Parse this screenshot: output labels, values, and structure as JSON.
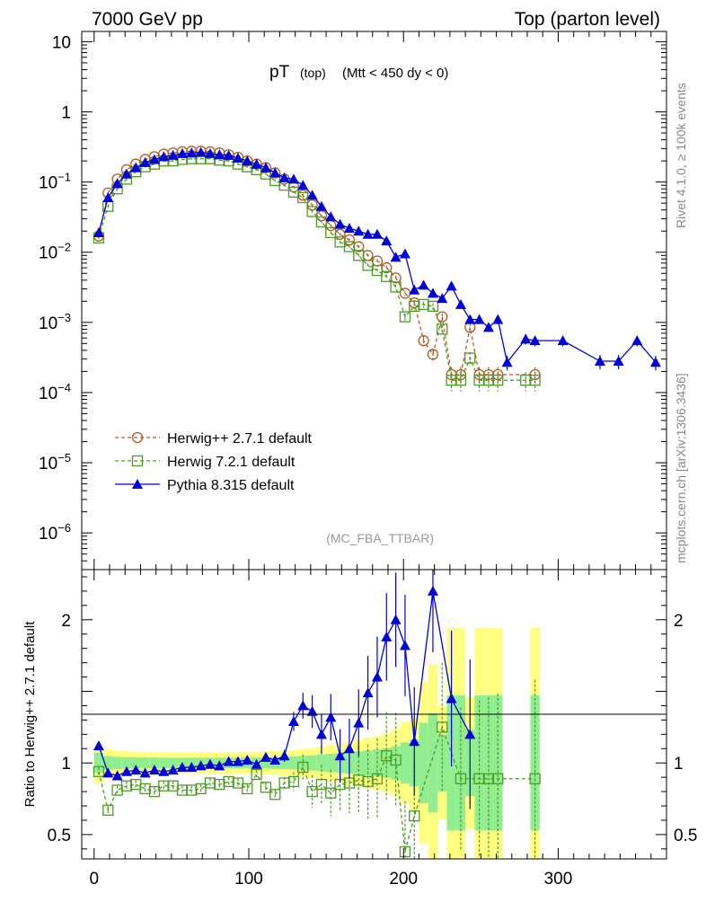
{
  "header": {
    "left": "7000 GeV pp",
    "right": "Top (parton level)"
  },
  "title": {
    "main": "pT",
    "sub1": "(top)",
    "sub2": "(Mtt < 450 dy < 0)"
  },
  "analysis_label": "(MC_FBA_TTBAR)",
  "side_text": {
    "rivet": "Rivet 4.1.0, ≥ 100k events",
    "mcplots": "mcplots.cern.ch [arXiv:1306.3436]"
  },
  "ratio_ylabel": "Ratio to Herwig++ 2.7.1 default",
  "colors": {
    "herwig_pp": "#b35a1f",
    "herwig7": "#4d9a26",
    "pythia": "#0000dd",
    "band_yellow": "#ffff80",
    "band_green": "#90ee90"
  },
  "chart_data": [
    {
      "type": "line",
      "yscale": "log",
      "xlim": [
        -8,
        370
      ],
      "ylim": [
        3e-07,
        14
      ],
      "y_tick_labels": [
        "10",
        "1",
        "10^-1",
        "10^-2",
        "10^-3",
        "10^-4",
        "10^-5",
        "10^-6"
      ],
      "legend": [
        "Herwig++ 2.7.1 default",
        "Herwig 7.2.1 default",
        "Pythia 8.315 default"
      ],
      "legend_position": "bottom-left",
      "series": [
        {
          "name": "Herwig++ 2.7.1 default",
          "marker": "open-circle",
          "style": "dashed",
          "x": [
            3,
            9,
            15,
            21,
            27,
            33,
            39,
            45,
            51,
            57,
            63,
            69,
            75,
            81,
            87,
            93,
            99,
            105,
            111,
            117,
            123,
            129,
            135,
            141,
            147,
            153,
            159,
            165,
            171,
            177,
            183,
            189,
            195,
            201,
            207,
            213,
            219,
            225,
            231,
            237,
            243,
            249,
            255,
            261,
            285
          ],
          "y": [
            0.017,
            0.07,
            0.11,
            0.15,
            0.18,
            0.21,
            0.23,
            0.25,
            0.26,
            0.27,
            0.275,
            0.275,
            0.27,
            0.26,
            0.245,
            0.225,
            0.2,
            0.18,
            0.16,
            0.135,
            0.11,
            0.085,
            0.065,
            0.047,
            0.033,
            0.024,
            0.018,
            0.015,
            0.012,
            0.009,
            0.0075,
            0.006,
            0.0043,
            0.0026,
            0.0019,
            0.00055,
            0.00035,
            0.0012,
            0.00018,
            0.00018,
            0.00085,
            0.00018,
            0.00018,
            0.00018,
            0.00018
          ]
        },
        {
          "name": "Herwig 7.2.1 default",
          "marker": "open-square",
          "style": "dashed",
          "x": [
            3,
            9,
            15,
            21,
            27,
            33,
            39,
            45,
            51,
            57,
            63,
            69,
            75,
            81,
            87,
            93,
            99,
            105,
            111,
            117,
            123,
            129,
            135,
            141,
            147,
            153,
            159,
            165,
            171,
            177,
            183,
            189,
            195,
            201,
            207,
            213,
            219,
            225,
            231,
            237,
            243,
            249,
            255,
            261,
            279,
            285
          ],
          "y": [
            0.016,
            0.045,
            0.08,
            0.11,
            0.14,
            0.165,
            0.18,
            0.2,
            0.2,
            0.21,
            0.215,
            0.215,
            0.215,
            0.205,
            0.2,
            0.18,
            0.165,
            0.15,
            0.13,
            0.105,
            0.09,
            0.072,
            0.06,
            0.038,
            0.027,
            0.019,
            0.014,
            0.012,
            0.009,
            0.0065,
            0.0055,
            0.0045,
            0.0032,
            0.0012,
            0.0017,
            0.0018,
            0.0017,
            0.0008,
            0.00015,
            0.00015,
            0.00031,
            0.00015,
            0.00015,
            0.00015,
            0.00015,
            0.00015
          ]
        },
        {
          "name": "Pythia 8.315 default",
          "marker": "filled-triangle",
          "style": "solid",
          "x": [
            3,
            9,
            15,
            21,
            27,
            33,
            39,
            45,
            51,
            57,
            63,
            69,
            75,
            81,
            87,
            93,
            99,
            105,
            111,
            117,
            123,
            129,
            135,
            141,
            147,
            153,
            159,
            165,
            171,
            177,
            183,
            189,
            195,
            201,
            207,
            213,
            219,
            225,
            231,
            237,
            243,
            249,
            255,
            261,
            267,
            279,
            285,
            303,
            327,
            339,
            351,
            363
          ],
          "y": [
            0.019,
            0.06,
            0.095,
            0.13,
            0.16,
            0.19,
            0.21,
            0.23,
            0.24,
            0.255,
            0.26,
            0.265,
            0.255,
            0.245,
            0.24,
            0.22,
            0.2,
            0.18,
            0.16,
            0.135,
            0.115,
            0.11,
            0.09,
            0.065,
            0.045,
            0.032,
            0.025,
            0.022,
            0.02,
            0.018,
            0.018,
            0.0145,
            0.0085,
            0.0095,
            0.0029,
            0.0034,
            0.0026,
            0.0022,
            0.0033,
            0.0018,
            0.0011,
            0.0011,
            0.00085,
            0.0011,
            0.00027,
            0.00058,
            0.00055,
            0.00055,
            0.00028,
            0.00028,
            0.00055,
            0.00027
          ]
        }
      ]
    },
    {
      "type": "line",
      "title": "ratio",
      "ylim": [
        0.33,
        2.35
      ],
      "xlim": [
        -8,
        370
      ],
      "x_tick_labels": [
        "0",
        "100",
        "200",
        "300"
      ],
      "y_tick_labels": [
        "0.5",
        "1",
        "2"
      ],
      "reference": 1,
      "series": [
        {
          "name": "Herwig 7.2.1 default",
          "x": [
            3,
            9,
            15,
            21,
            27,
            33,
            39,
            45,
            51,
            57,
            63,
            69,
            75,
            81,
            87,
            93,
            99,
            105,
            111,
            117,
            123,
            129,
            135,
            141,
            147,
            153,
            159,
            165,
            171,
            177,
            183,
            189,
            195,
            201,
            207,
            225,
            237,
            249,
            255,
            261,
            285
          ],
          "y": [
            0.94,
            0.67,
            0.81,
            0.84,
            0.85,
            0.82,
            0.8,
            0.84,
            0.84,
            0.81,
            0.81,
            0.82,
            0.86,
            0.85,
            0.87,
            0.86,
            0.82,
            0.92,
            0.83,
            0.78,
            0.86,
            0.87,
            0.97,
            0.8,
            0.85,
            0.79,
            0.85,
            0.86,
            0.88,
            0.87,
            0.89,
            1.05,
            1.02,
            0.38,
            0.63,
            1.25,
            0.89,
            0.89,
            0.89,
            0.89,
            0.89
          ]
        },
        {
          "name": "Pythia 8.315 default",
          "x": [
            3,
            9,
            15,
            21,
            27,
            33,
            39,
            45,
            51,
            57,
            63,
            69,
            75,
            81,
            87,
            93,
            99,
            105,
            111,
            117,
            123,
            129,
            135,
            141,
            147,
            153,
            159,
            165,
            171,
            177,
            183,
            189,
            195,
            201,
            207,
            219,
            231,
            243
          ],
          "y": [
            1.12,
            0.93,
            0.91,
            0.94,
            0.95,
            0.93,
            0.95,
            0.94,
            0.95,
            0.97,
            0.97,
            0.98,
            0.99,
            0.98,
            1.01,
            1.01,
            1.02,
            0.99,
            1.04,
            1.02,
            1.05,
            1.29,
            1.4,
            1.36,
            1.2,
            1.32,
            1.05,
            1.1,
            1.28,
            1.49,
            1.6,
            1.88,
            2.0,
            1.82,
            1.15,
            2.2,
            1.45,
            1.2
          ]
        }
      ]
    }
  ]
}
